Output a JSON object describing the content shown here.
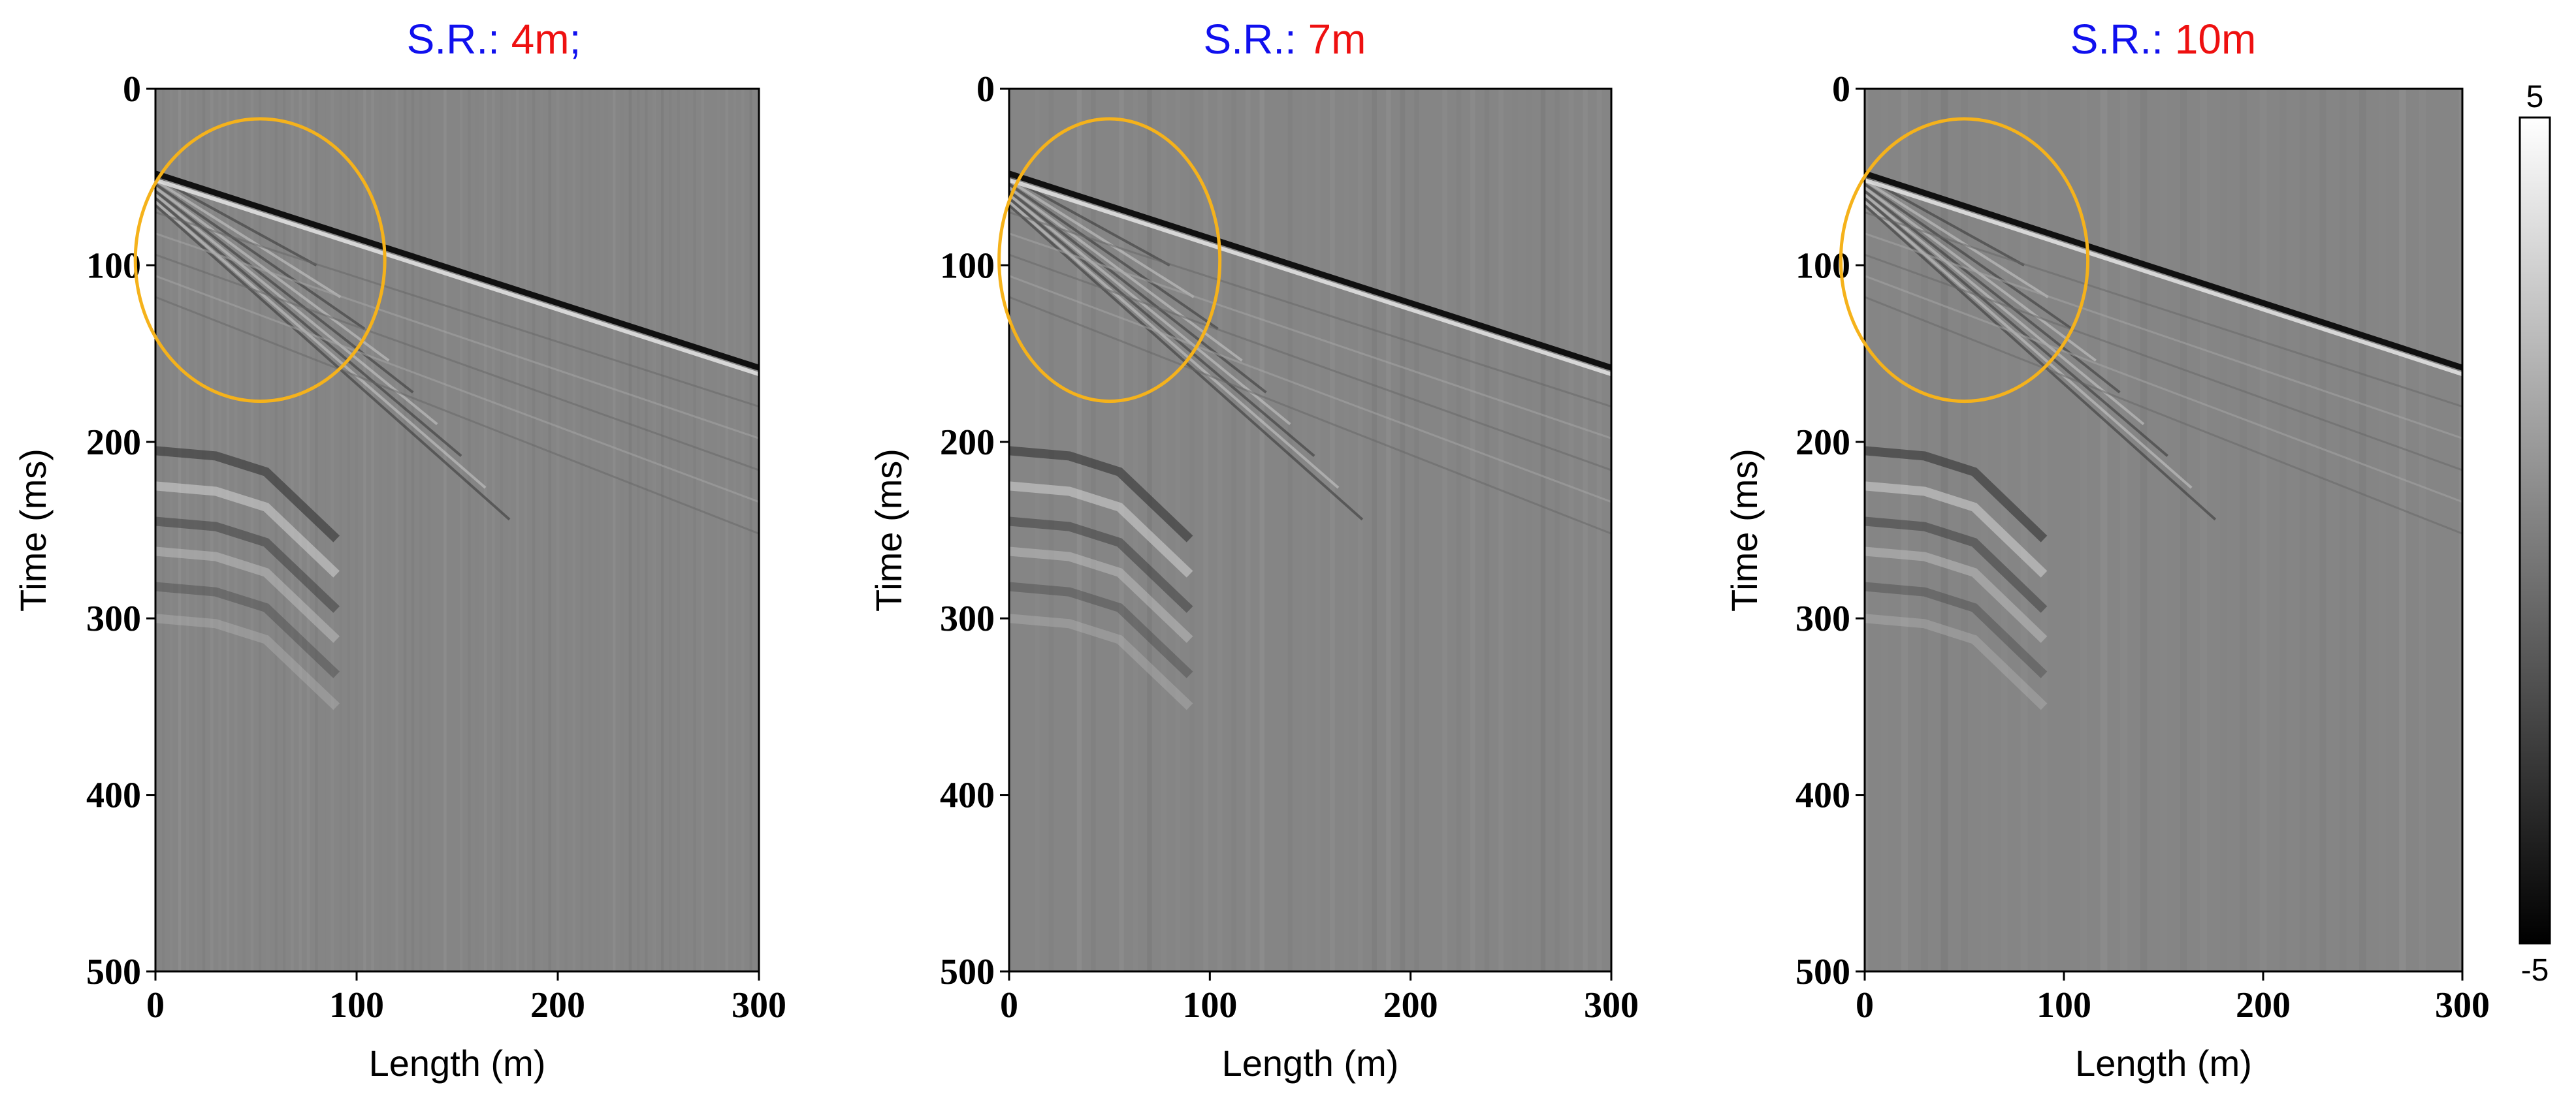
{
  "figure": {
    "colorbar": {
      "max_label": "5",
      "min_label": "-5",
      "colormap": "grayscale",
      "min_color": "#000000",
      "max_color": "#ffffff"
    },
    "colors": {
      "title_prefix": "#1010ee",
      "title_value": "#ee1010",
      "highlight_circle": "#f5b21b",
      "background_field": "#858585"
    }
  },
  "chart_data": [
    {
      "type": "heatmap",
      "title": {
        "prefix": "S.R.: ",
        "value": "4m",
        "suffix": ";"
      },
      "xlabel": "Length (m)",
      "ylabel": "Time (ms)",
      "xlim": [
        0,
        300
      ],
      "ylim": [
        0,
        500
      ],
      "y_inverted": true,
      "x_ticks": [
        "0",
        "100",
        "200",
        "300"
      ],
      "y_ticks": [
        "0",
        "100",
        "200",
        "300",
        "400",
        "500"
      ],
      "first_arrival": {
        "x": [
          0,
          300
        ],
        "t": [
          48,
          158
        ]
      },
      "highlight": {
        "center_x": 52,
        "center_t": 97,
        "radius_x": 62,
        "radius_t": 80
      },
      "trace_spacing_m": 4
    },
    {
      "type": "heatmap",
      "title": {
        "prefix": "S.R.: ",
        "value": "7m",
        "suffix": ""
      },
      "xlabel": "Length (m)",
      "ylabel": "Time (ms)",
      "xlim": [
        0,
        300
      ],
      "ylim": [
        0,
        500
      ],
      "y_inverted": true,
      "x_ticks": [
        "0",
        "100",
        "200",
        "300"
      ],
      "y_ticks": [
        "0",
        "100",
        "200",
        "300",
        "400",
        "500"
      ],
      "first_arrival": {
        "x": [
          0,
          300
        ],
        "t": [
          48,
          158
        ]
      },
      "highlight": {
        "center_x": 50,
        "center_t": 97,
        "radius_x": 55,
        "radius_t": 80
      },
      "trace_spacing_m": 7
    },
    {
      "type": "heatmap",
      "title": {
        "prefix": "S.R.: ",
        "value": "10m",
        "suffix": ""
      },
      "xlabel": "Length (m)",
      "ylabel": "Time (ms)",
      "xlim": [
        0,
        300
      ],
      "ylim": [
        0,
        500
      ],
      "y_inverted": true,
      "x_ticks": [
        "0",
        "100",
        "200",
        "300"
      ],
      "y_ticks": [
        "0",
        "100",
        "200",
        "300",
        "400",
        "500"
      ],
      "first_arrival": {
        "x": [
          0,
          300
        ],
        "t": [
          48,
          158
        ]
      },
      "highlight": {
        "center_x": 50,
        "center_t": 97,
        "radius_x": 62,
        "radius_t": 80
      },
      "trace_spacing_m": 10
    }
  ]
}
